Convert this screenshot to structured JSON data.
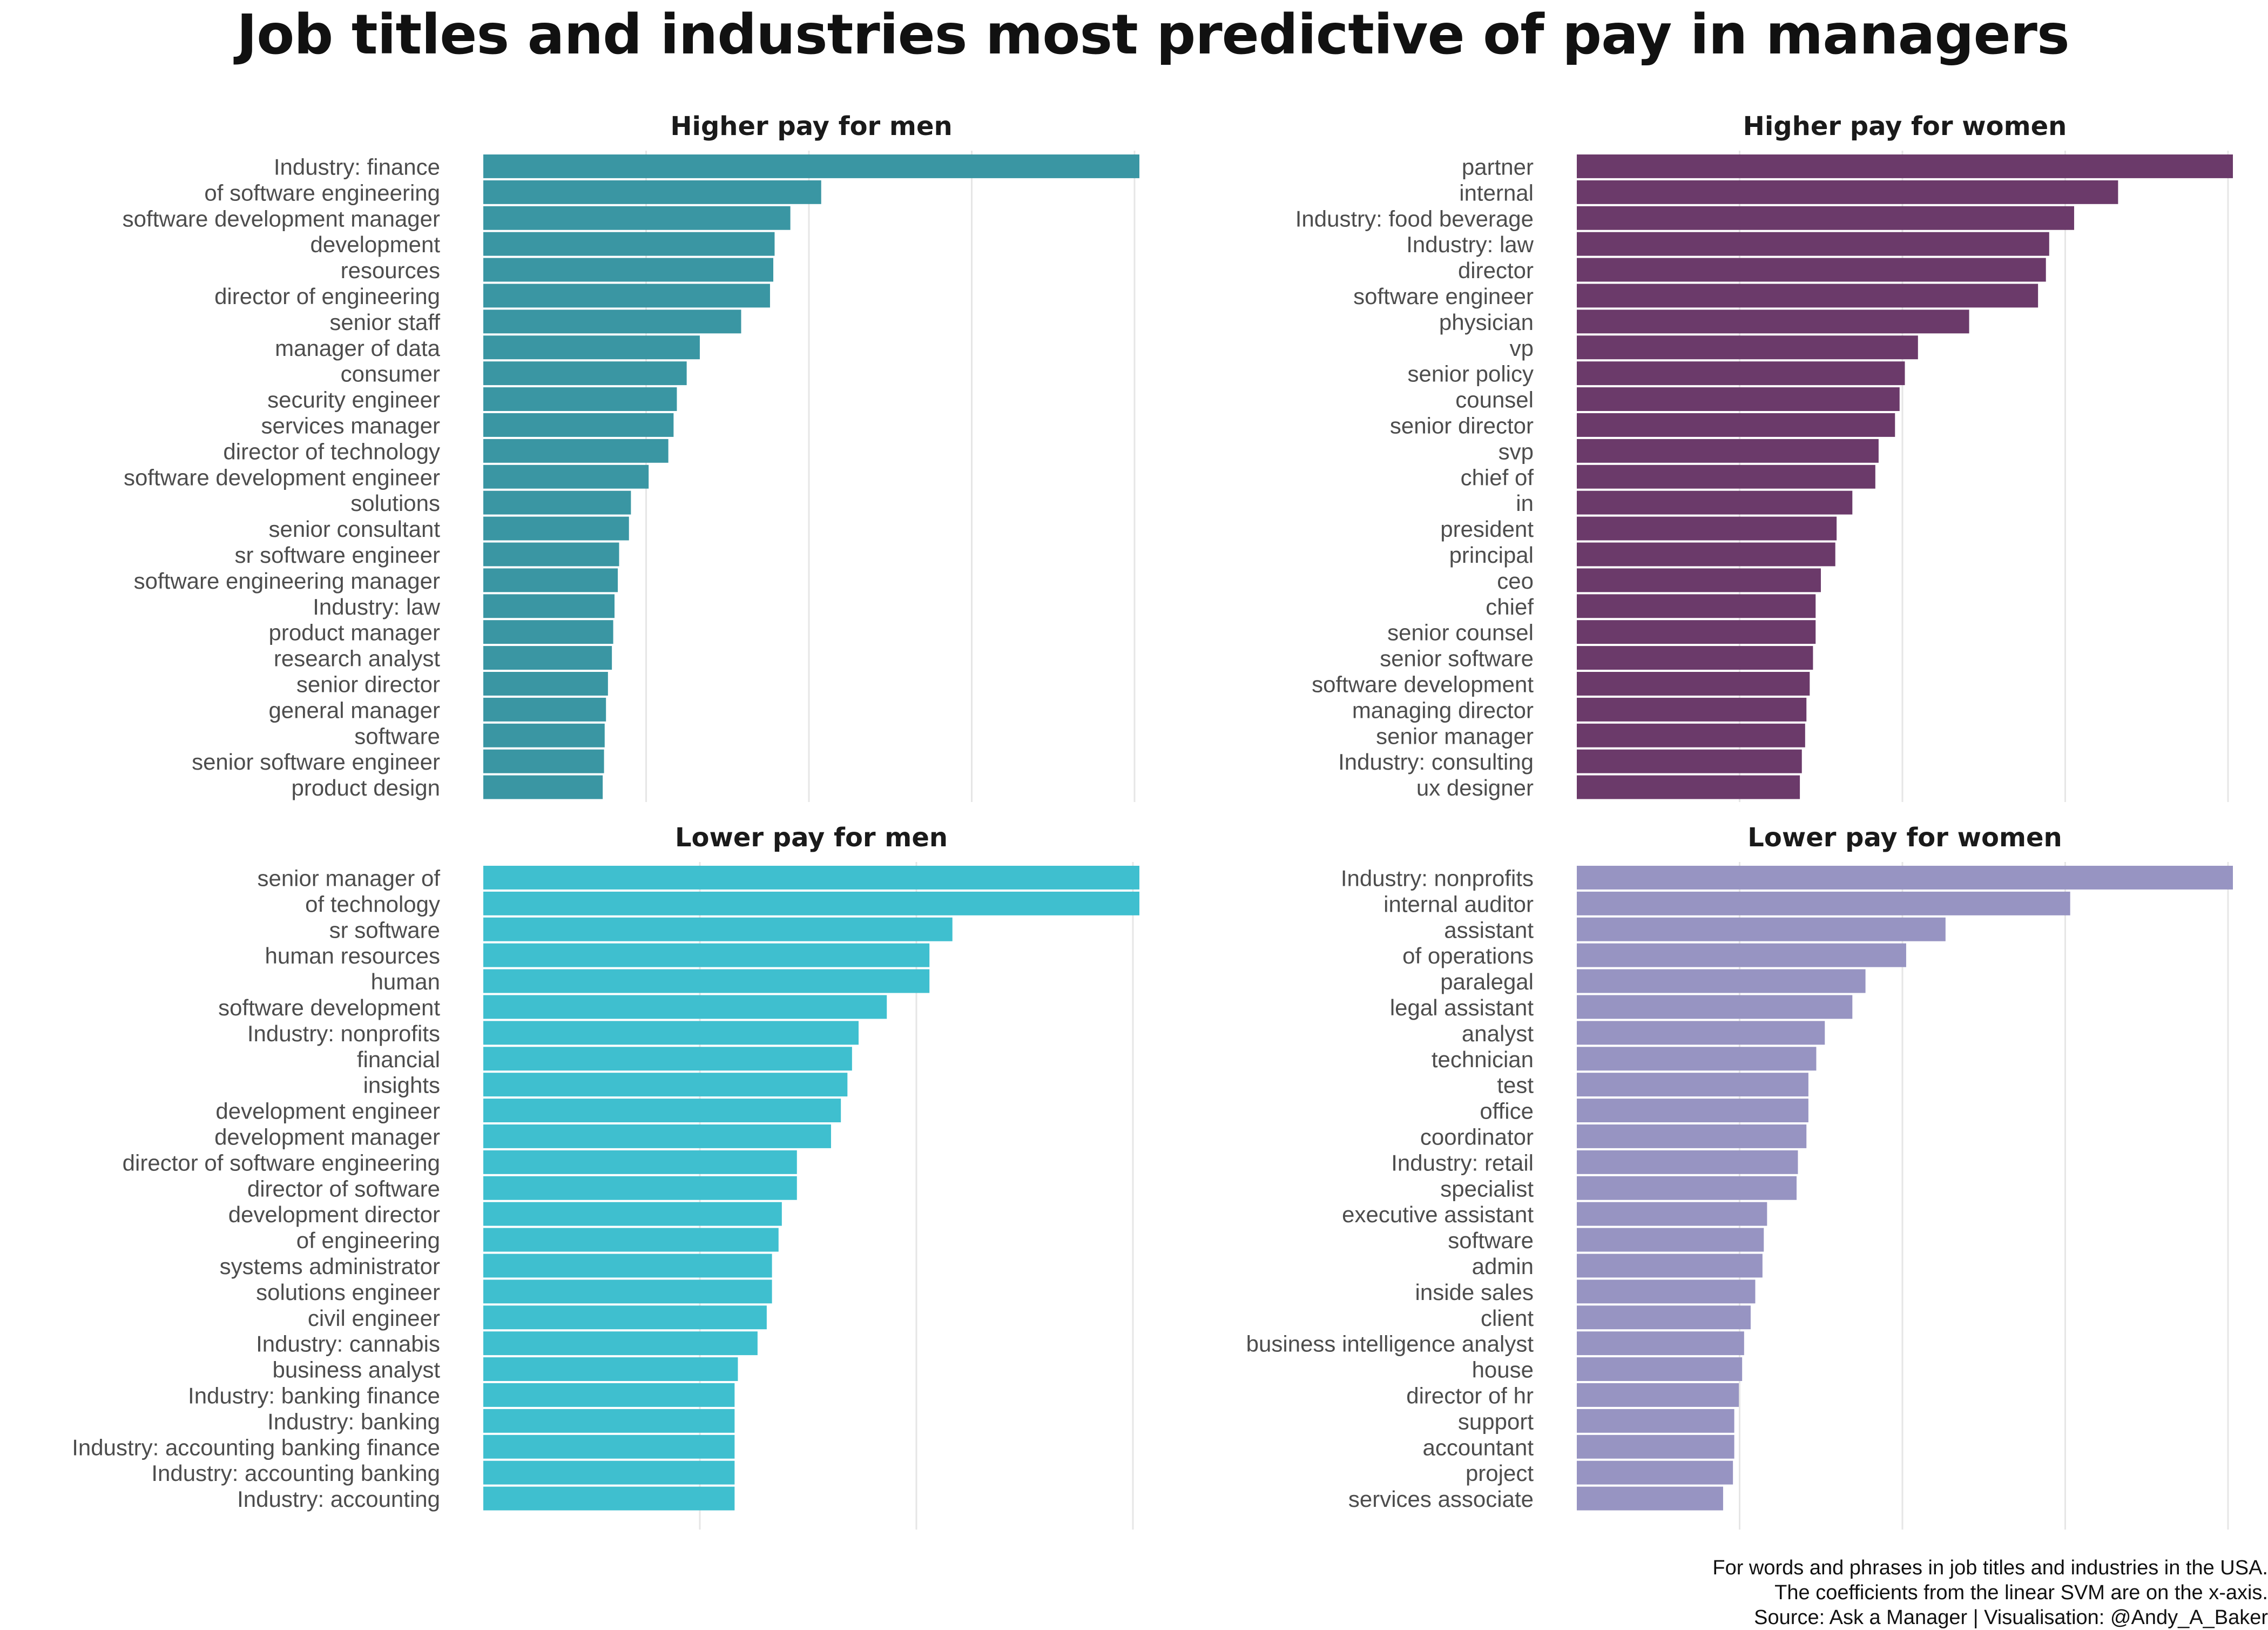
{
  "title": "Job titles and industries most predictive of pay in managers",
  "caption": [
    "For words and phrases in job titles and industries in the USA.",
    "The coefficients from the linear SVM are on the x-axis.",
    "Source: Ask a Manager | Visualisation: @Andy_A_Baker"
  ],
  "colors": {
    "higher_men": "#3a96a3",
    "higher_women": "#6b3a6a",
    "lower_men": "#3fbfcf",
    "lower_women": "#9794c2"
  },
  "chart_data": [
    {
      "type": "bar",
      "orientation": "horizontal",
      "title": "Higher pay for men",
      "color": "#3a96a3",
      "xlim": [
        0,
        1.0
      ],
      "grid": "vertical",
      "categories": [
        "Industry: finance",
        "of software engineering",
        "software development manager",
        "development",
        "resources",
        "director of engineering",
        "senior staff",
        "manager of data",
        "consumer",
        "security engineer",
        "services manager",
        "director of technology",
        "software development engineer",
        "solutions",
        "senior consultant",
        "sr software engineer",
        "software engineering manager",
        "Industry: law",
        "product manager",
        "research analyst",
        "senior director",
        "general manager",
        "software",
        "senior software engineer",
        "product design"
      ],
      "values": [
        1.0,
        0.515,
        0.468,
        0.444,
        0.442,
        0.437,
        0.393,
        0.33,
        0.31,
        0.295,
        0.29,
        0.282,
        0.252,
        0.225,
        0.222,
        0.207,
        0.205,
        0.2,
        0.198,
        0.196,
        0.19,
        0.187,
        0.185,
        0.184,
        0.182
      ]
    },
    {
      "type": "bar",
      "orientation": "horizontal",
      "title": "Higher pay for women",
      "color": "#6b3a6a",
      "xlim": [
        0,
        1.0
      ],
      "grid": "vertical",
      "categories": [
        "partner",
        "internal",
        "Industry: food beverage",
        "Industry: law",
        "director",
        "software engineer",
        "physician",
        "vp",
        "senior policy",
        "counsel",
        "senior director",
        "svp",
        "chief of",
        "in",
        "president",
        "principal",
        "ceo",
        "chief",
        "senior counsel",
        "senior software",
        "software development",
        "managing director",
        "senior manager",
        "Industry: consulting",
        "ux designer"
      ],
      "values": [
        1.0,
        0.825,
        0.758,
        0.72,
        0.715,
        0.703,
        0.598,
        0.52,
        0.5,
        0.492,
        0.485,
        0.46,
        0.455,
        0.42,
        0.396,
        0.394,
        0.372,
        0.364,
        0.364,
        0.36,
        0.355,
        0.35,
        0.348,
        0.343,
        0.34
      ]
    },
    {
      "type": "bar",
      "orientation": "horizontal",
      "title": "Lower pay for men",
      "color": "#3fbfcf",
      "xlim": [
        0,
        1.0
      ],
      "grid": "vertical",
      "categories": [
        "senior manager of",
        "of technology",
        "sr software",
        "human resources",
        "human",
        "software development",
        "Industry: nonprofits",
        "financial",
        "insights",
        "development engineer",
        "development manager",
        "director of software engineering",
        "director of software",
        "development director",
        "of engineering",
        "systems administrator",
        "solutions engineer",
        "civil engineer",
        "Industry: cannabis",
        "business analyst",
        "Industry: banking finance",
        "Industry: banking",
        "Industry: accounting banking finance",
        "Industry: accounting banking",
        "Industry: accounting"
      ],
      "values": [
        1.0,
        1.0,
        0.715,
        0.68,
        0.68,
        0.615,
        0.572,
        0.562,
        0.555,
        0.545,
        0.53,
        0.478,
        0.478,
        0.455,
        0.45,
        0.44,
        0.44,
        0.432,
        0.418,
        0.388,
        0.383,
        0.383,
        0.383,
        0.383,
        0.383
      ]
    },
    {
      "type": "bar",
      "orientation": "horizontal",
      "title": "Lower pay for women",
      "color": "#9794c2",
      "xlim": [
        0,
        1.0
      ],
      "grid": "vertical",
      "categories": [
        "Industry: nonprofits",
        "internal auditor",
        "assistant",
        "of operations",
        "paralegal",
        "legal assistant",
        "analyst",
        "technician",
        "test",
        "office",
        "coordinator",
        "Industry: retail",
        "specialist",
        "executive assistant",
        "software",
        "admin",
        "inside sales",
        "client",
        "business intelligence analyst",
        "house",
        "director of hr",
        "support",
        "accountant",
        "project",
        "services associate"
      ],
      "values": [
        1.0,
        0.752,
        0.562,
        0.502,
        0.44,
        0.42,
        0.378,
        0.365,
        0.353,
        0.353,
        0.35,
        0.337,
        0.335,
        0.29,
        0.285,
        0.283,
        0.272,
        0.265,
        0.255,
        0.252,
        0.247,
        0.24,
        0.24,
        0.238,
        0.223
      ]
    }
  ]
}
